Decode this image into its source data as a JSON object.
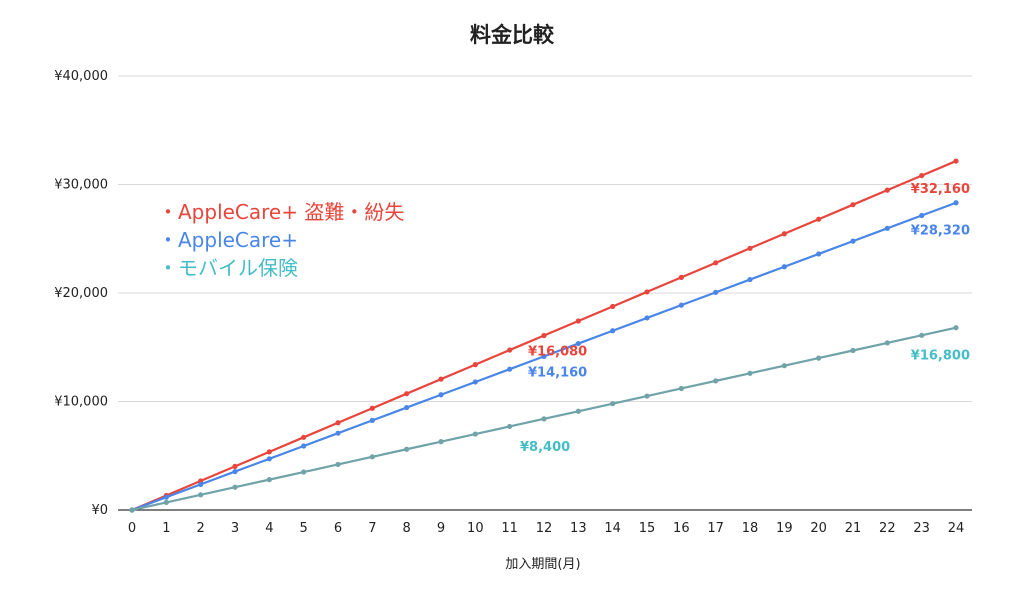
{
  "chart_data": {
    "type": "line",
    "title": "料金比較",
    "xlabel": "加入期間(月)",
    "ylabel": "",
    "x": [
      0,
      1,
      2,
      3,
      4,
      5,
      6,
      7,
      8,
      9,
      10,
      11,
      12,
      13,
      14,
      15,
      16,
      17,
      18,
      19,
      20,
      21,
      22,
      23,
      24
    ],
    "ylim": [
      0,
      40000
    ],
    "yticks": [
      "¥0",
      "¥10,000",
      "¥20,000",
      "¥30,000",
      "¥40,000"
    ],
    "ytick_values": [
      0,
      10000,
      20000,
      30000,
      40000
    ],
    "grid": true,
    "legend_position": "top-left",
    "series": [
      {
        "name": "AppleCare+ 盗難・紛失",
        "legend_label": "・AppleCare+ 盗難・紛失",
        "color": "#e8453c",
        "monthly": 1340,
        "values": [
          0,
          1340,
          2680,
          4020,
          5360,
          6700,
          8040,
          9380,
          10720,
          12060,
          13400,
          14740,
          16080,
          17420,
          18760,
          20100,
          21440,
          22780,
          24120,
          25460,
          26800,
          28140,
          29480,
          30820,
          32160
        ],
        "labels": [
          {
            "x": 12,
            "y": 16080,
            "text": "¥16,080"
          },
          {
            "x": 24,
            "y": 32160,
            "text": "¥32,160"
          }
        ]
      },
      {
        "name": "AppleCare+",
        "legend_label": "・AppleCare+",
        "color": "#4a86e8",
        "monthly": 1180,
        "values": [
          0,
          1180,
          2360,
          3540,
          4720,
          5900,
          7080,
          8260,
          9440,
          10620,
          11800,
          12980,
          14160,
          15340,
          16520,
          17700,
          18880,
          20060,
          21240,
          22420,
          23600,
          24780,
          25960,
          27140,
          28320
        ],
        "labels": [
          {
            "x": 12,
            "y": 14160,
            "text": "¥14,160"
          },
          {
            "x": 24,
            "y": 28320,
            "text": "¥28,320"
          }
        ]
      },
      {
        "name": "モバイル保険",
        "legend_label": "・モバイル保険",
        "color": "#6fa3a8",
        "label_color": "#46bdc6",
        "monthly": 700,
        "values": [
          0,
          700,
          1400,
          2100,
          2800,
          3500,
          4200,
          4900,
          5600,
          6300,
          7000,
          7700,
          8400,
          9100,
          9800,
          10500,
          11200,
          11900,
          12600,
          13300,
          14000,
          14700,
          15400,
          16100,
          16800
        ],
        "labels": [
          {
            "x": 12,
            "y": 8400,
            "text": "¥8,400"
          },
          {
            "x": 24,
            "y": 16800,
            "text": "¥16,800"
          }
        ]
      }
    ]
  }
}
